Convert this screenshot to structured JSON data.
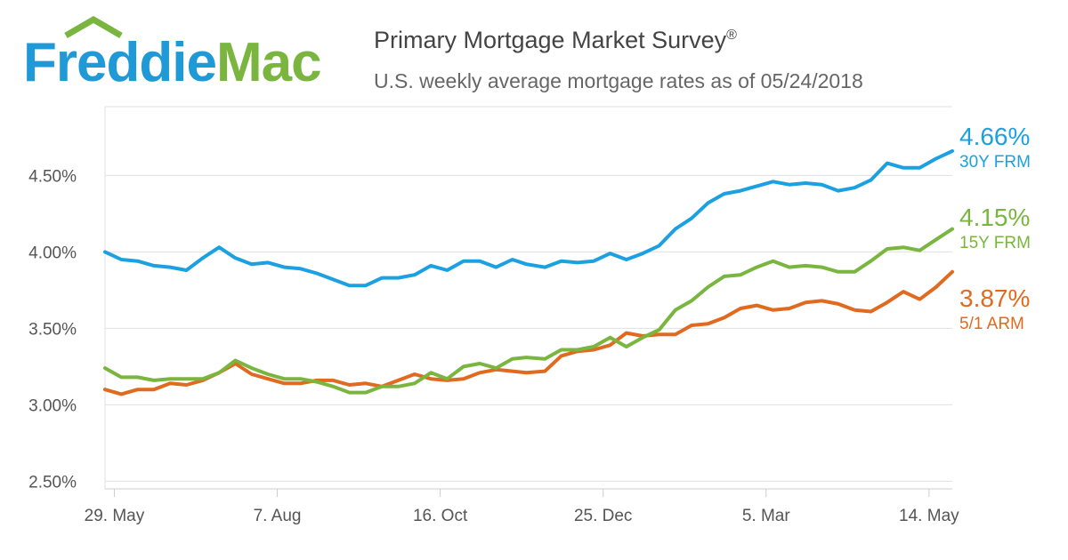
{
  "logo": {
    "part1": "Freddie",
    "part2": "Mac"
  },
  "header": {
    "title": "Primary Mortgage Market Survey",
    "title_mark": "®",
    "subtitle": "U.S. weekly average mortgage rates as of 05/24/2018"
  },
  "colors": {
    "frm30": "#1ba1e2",
    "frm15": "#7ab63f",
    "arm51": "#e06a1f",
    "grid": "#e0e0e0",
    "text": "#555555"
  },
  "end_labels": [
    {
      "value": "4.66%",
      "name": "30Y FRM",
      "color": "#1ba1e2"
    },
    {
      "value": "4.15%",
      "name": "15Y FRM",
      "color": "#7ab63f"
    },
    {
      "value": "3.87%",
      "name": "5/1 ARM",
      "color": "#e06a1f"
    }
  ],
  "chart_data": {
    "type": "line",
    "x": [
      "2017-05-25",
      "2017-06-01",
      "2017-06-08",
      "2017-06-15",
      "2017-06-22",
      "2017-06-29",
      "2017-07-06",
      "2017-07-13",
      "2017-07-20",
      "2017-07-27",
      "2017-08-03",
      "2017-08-10",
      "2017-08-17",
      "2017-08-24",
      "2017-08-31",
      "2017-09-07",
      "2017-09-14",
      "2017-09-21",
      "2017-09-28",
      "2017-10-05",
      "2017-10-12",
      "2017-10-19",
      "2017-10-26",
      "2017-11-02",
      "2017-11-09",
      "2017-11-16",
      "2017-11-22",
      "2017-11-30",
      "2017-12-07",
      "2017-12-14",
      "2017-12-21",
      "2017-12-28",
      "2018-01-04",
      "2018-01-11",
      "2018-01-18",
      "2018-01-25",
      "2018-02-01",
      "2018-02-08",
      "2018-02-15",
      "2018-02-22",
      "2018-03-01",
      "2018-03-08",
      "2018-03-15",
      "2018-03-22",
      "2018-03-29",
      "2018-04-05",
      "2018-04-12",
      "2018-04-19",
      "2018-04-26",
      "2018-05-03",
      "2018-05-10",
      "2018-05-17",
      "2018-05-24"
    ],
    "x_tick_labels": [
      "29. May",
      "7. Aug",
      "16. Oct",
      "25. Dec",
      "5. Mar",
      "14. May"
    ],
    "x_tick_dates": [
      "2017-05-29",
      "2017-08-07",
      "2017-10-16",
      "2017-12-25",
      "2018-03-05",
      "2018-05-14"
    ],
    "x_range": [
      "2017-05-25",
      "2018-05-24"
    ],
    "y_ticks": [
      2.5,
      3.0,
      3.5,
      4.0,
      4.5
    ],
    "y_tick_labels": [
      "2.50%",
      "3.00%",
      "3.50%",
      "4.00%",
      "4.50%"
    ],
    "ylim": [
      2.45,
      4.95
    ],
    "grid": true,
    "legend": "end labels at right",
    "series": [
      {
        "name": "30Y FRM",
        "color": "#1ba1e2",
        "values": [
          4.0,
          3.95,
          3.94,
          3.91,
          3.9,
          3.88,
          3.96,
          4.03,
          3.96,
          3.92,
          3.93,
          3.9,
          3.89,
          3.86,
          3.82,
          3.78,
          3.78,
          3.83,
          3.83,
          3.85,
          3.91,
          3.88,
          3.94,
          3.94,
          3.9,
          3.95,
          3.92,
          3.9,
          3.94,
          3.93,
          3.94,
          3.99,
          3.95,
          3.99,
          4.04,
          4.15,
          4.22,
          4.32,
          4.38,
          4.4,
          4.43,
          4.46,
          4.44,
          4.45,
          4.44,
          4.4,
          4.42,
          4.47,
          4.58,
          4.55,
          4.55,
          4.61,
          4.66
        ]
      },
      {
        "name": "15Y FRM",
        "color": "#7ab63f",
        "values": [
          3.24,
          3.18,
          3.18,
          3.16,
          3.17,
          3.17,
          3.17,
          3.21,
          3.29,
          3.24,
          3.2,
          3.17,
          3.17,
          3.15,
          3.12,
          3.08,
          3.08,
          3.12,
          3.12,
          3.14,
          3.21,
          3.17,
          3.25,
          3.27,
          3.24,
          3.3,
          3.31,
          3.3,
          3.36,
          3.36,
          3.38,
          3.44,
          3.38,
          3.44,
          3.49,
          3.62,
          3.68,
          3.77,
          3.84,
          3.85,
          3.9,
          3.94,
          3.9,
          3.91,
          3.9,
          3.87,
          3.87,
          3.94,
          4.02,
          4.03,
          4.01,
          4.08,
          4.15
        ]
      },
      {
        "name": "5/1 ARM",
        "color": "#e06a1f",
        "values": [
          3.1,
          3.07,
          3.1,
          3.1,
          3.14,
          3.13,
          3.16,
          3.21,
          3.27,
          3.2,
          3.17,
          3.14,
          3.14,
          3.16,
          3.16,
          3.13,
          3.14,
          3.12,
          3.16,
          3.2,
          3.17,
          3.16,
          3.17,
          3.21,
          3.23,
          3.22,
          3.21,
          3.22,
          3.32,
          3.35,
          3.36,
          3.39,
          3.47,
          3.45,
          3.46,
          3.46,
          3.52,
          3.53,
          3.57,
          3.63,
          3.65,
          3.62,
          3.63,
          3.67,
          3.68,
          3.66,
          3.62,
          3.61,
          3.67,
          3.74,
          3.69,
          3.77,
          3.87
        ]
      }
    ]
  }
}
